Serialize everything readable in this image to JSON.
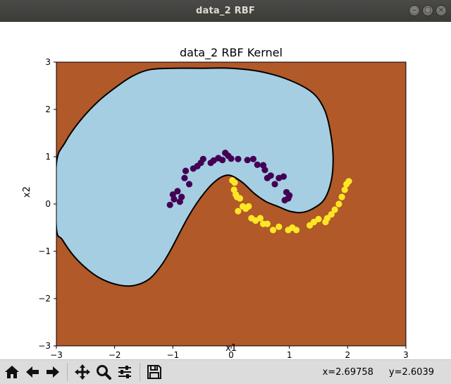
{
  "window": {
    "title": "data_2 RBF"
  },
  "toolbar": {
    "tools": [
      "home-icon",
      "back-icon",
      "forward-icon",
      "pan-icon",
      "zoom-icon",
      "subplots-icon",
      "save-icon"
    ],
    "coord_x": "x=2.69758",
    "coord_y": "y=2.6039"
  },
  "colors": {
    "region_negative": "#a6cee3",
    "region_positive": "#b15928",
    "class_0": "#440154",
    "class_1": "#fde725",
    "boundary": "#000000"
  },
  "chart_data": {
    "type": "scatter",
    "title": "data_2 RBF Kernel",
    "xlabel": "x1",
    "ylabel": "x2",
    "xlim": [
      -3,
      3
    ],
    "ylim": [
      -3,
      3
    ],
    "xticks": [
      "−3",
      "−2",
      "−1",
      "0",
      "1",
      "2",
      "3"
    ],
    "yticks": [
      "3",
      "2",
      "1",
      "0",
      "−1",
      "−2",
      "−3"
    ],
    "grid": false,
    "legend": "none",
    "decision_region": {
      "x": [
        -3.0,
        -2.85,
        -2.6,
        -2.3,
        -2.0,
        -1.7,
        -1.4,
        -1.0,
        -0.5,
        0.0,
        0.5,
        1.0,
        1.4,
        1.6,
        1.7,
        1.75,
        1.72,
        1.6,
        1.4,
        1.2,
        1.0,
        0.8,
        0.6,
        0.4,
        0.2,
        0.0,
        -0.15,
        -0.3,
        -0.45,
        -0.6,
        -0.75,
        -0.9,
        -1.05,
        -1.2,
        -1.4,
        -1.65,
        -1.9,
        -2.2,
        -2.45,
        -2.7,
        -2.9,
        -3.0
      ],
      "y": [
        0.85,
        1.3,
        1.75,
        2.15,
        2.45,
        2.7,
        2.84,
        2.87,
        2.87,
        2.87,
        2.8,
        2.62,
        2.35,
        2.0,
        1.55,
        1.0,
        0.5,
        0.1,
        -0.1,
        -0.18,
        -0.15,
        -0.05,
        0.05,
        0.22,
        0.45,
        0.6,
        0.58,
        0.45,
        0.25,
        0.0,
        -0.3,
        -0.65,
        -1.0,
        -1.3,
        -1.58,
        -1.72,
        -1.72,
        -1.6,
        -1.4,
        -1.1,
        -0.75,
        -0.5
      ]
    },
    "series": [
      {
        "x": [
          -1.05,
          -1.0,
          -0.98,
          -0.92,
          -0.88,
          -0.85,
          -0.8,
          -0.78,
          -0.72,
          -0.65,
          -0.58,
          -0.52,
          -0.48,
          -0.35,
          -0.3,
          -0.22,
          -0.15,
          -0.1,
          -0.05,
          0.0,
          0.12,
          0.28,
          0.38,
          0.45,
          0.55,
          0.58,
          0.62,
          0.68,
          0.75,
          0.82,
          0.9,
          0.92,
          0.95,
          0.98,
          1.0
        ],
        "y": [
          -0.02,
          0.2,
          0.1,
          0.27,
          0.05,
          0.15,
          0.55,
          0.7,
          0.42,
          0.75,
          0.8,
          0.87,
          0.95,
          0.87,
          0.92,
          0.97,
          0.93,
          1.08,
          1.02,
          0.96,
          0.95,
          0.93,
          0.95,
          0.83,
          0.82,
          0.72,
          0.55,
          0.6,
          0.42,
          0.55,
          0.58,
          0.08,
          0.25,
          0.12,
          0.18
        ]
      },
      {
        "x": [
          0.02,
          0.06,
          0.05,
          0.08,
          0.1,
          0.12,
          0.15,
          0.2,
          0.25,
          0.3,
          0.35,
          0.42,
          0.5,
          0.55,
          0.62,
          0.72,
          0.82,
          0.98,
          1.05,
          1.12,
          1.35,
          1.42,
          1.5,
          1.62,
          1.65,
          1.72,
          1.78,
          1.85,
          1.9,
          1.95,
          1.98,
          2.02
        ],
        "y": [
          0.5,
          0.45,
          0.3,
          0.2,
          0.15,
          -0.15,
          0.12,
          -0.05,
          -0.1,
          -0.05,
          -0.3,
          -0.35,
          -0.3,
          -0.42,
          -0.42,
          -0.55,
          -0.48,
          -0.55,
          -0.5,
          -0.55,
          -0.45,
          -0.38,
          -0.32,
          -0.38,
          -0.3,
          -0.22,
          -0.12,
          0.0,
          0.15,
          0.3,
          0.42,
          0.48
        ]
      }
    ]
  }
}
